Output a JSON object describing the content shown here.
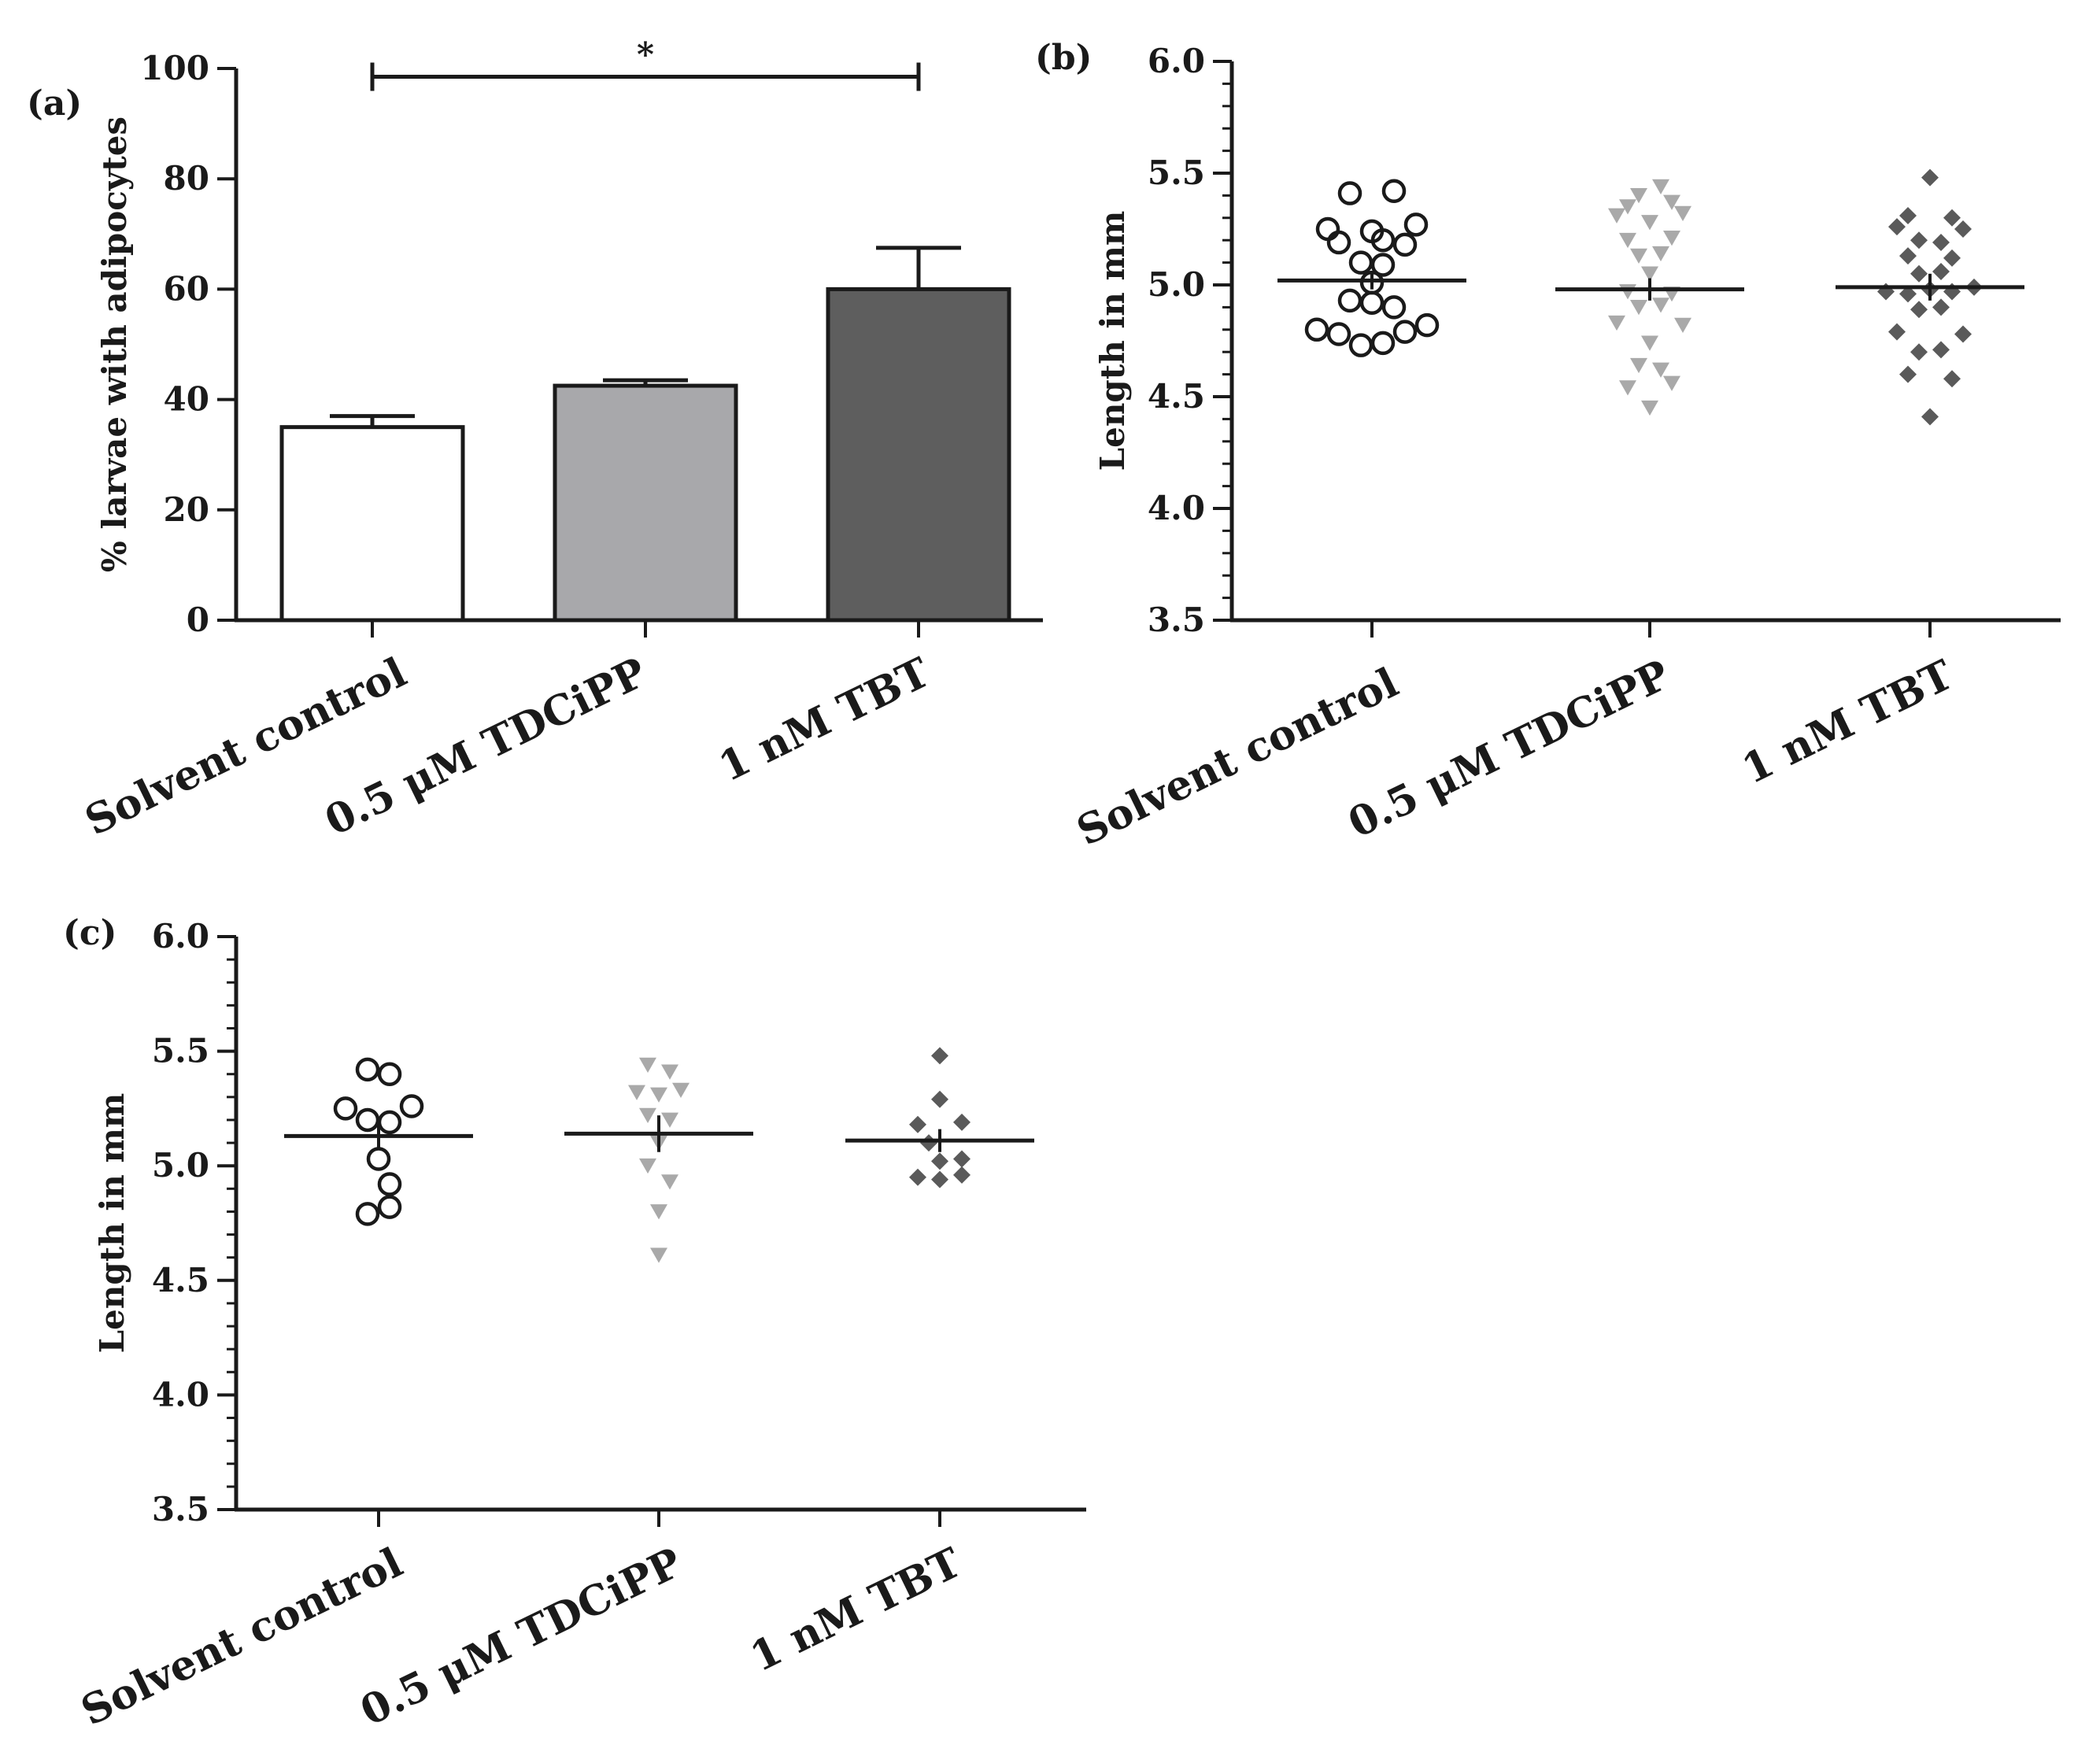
{
  "chart_data": [
    {
      "id": "a",
      "panel_label": "(a)",
      "type": "bar",
      "title": "",
      "xlabel": "",
      "ylabel": "% larvae with adipocytes",
      "ylim": [
        0,
        100
      ],
      "yticks": [
        "0",
        "20",
        "40",
        "60",
        "80",
        "100"
      ],
      "categories": [
        "Solvent control",
        "0.5 μM TDCiPP",
        "1 nM TBT"
      ],
      "values": [
        35,
        42.5,
        60
      ],
      "errors": [
        2,
        1,
        7.5
      ],
      "colors": [
        "#ffffff",
        "#a8a8ab",
        "#5e5e5e"
      ],
      "significance": {
        "label": "*",
        "from": 0,
        "to": 2
      }
    },
    {
      "id": "b",
      "panel_label": "(b)",
      "type": "scatter",
      "title": "",
      "xlabel": "",
      "ylabel": "Length in mm",
      "ylim": [
        3.5,
        6.0
      ],
      "yticks": [
        "3.5",
        "4.0",
        "4.5",
        "5.0",
        "5.5",
        "6.0"
      ],
      "categories": [
        "Solvent control",
        "0.5 μM TDCiPP",
        "1 nM TBT"
      ],
      "series": [
        {
          "name": "Solvent control",
          "marker": "open-circle",
          "color": "#1a1a1a",
          "mean": 5.02,
          "sem": 0.04,
          "points": [
            [
              -2,
              5.41
            ],
            [
              2,
              5.42
            ],
            [
              -4,
              5.25
            ],
            [
              4,
              5.27
            ],
            [
              0,
              5.24
            ],
            [
              -3,
              5.19
            ],
            [
              1,
              5.2
            ],
            [
              3,
              5.18
            ],
            [
              -1,
              5.1
            ],
            [
              1,
              5.09
            ],
            [
              -2,
              4.93
            ],
            [
              0,
              4.92
            ],
            [
              2,
              4.9
            ],
            [
              -5,
              4.8
            ],
            [
              5,
              4.82
            ],
            [
              -3,
              4.78
            ],
            [
              3,
              4.79
            ],
            [
              -1,
              4.73
            ],
            [
              1,
              4.74
            ],
            [
              0,
              5.01
            ]
          ]
        },
        {
          "name": "0.5 μM TDCiPP",
          "marker": "triangle-down",
          "color": "#a9a9a9",
          "mean": 4.98,
          "sem": 0.05,
          "points": [
            [
              -1,
              5.4
            ],
            [
              1,
              5.44
            ],
            [
              -2,
              5.35
            ],
            [
              2,
              5.37
            ],
            [
              -3,
              5.31
            ],
            [
              0,
              5.28
            ],
            [
              3,
              5.32
            ],
            [
              -2,
              5.2
            ],
            [
              2,
              5.21
            ],
            [
              -1,
              5.13
            ],
            [
              1,
              5.14
            ],
            [
              0,
              5.05
            ],
            [
              -2,
              4.97
            ],
            [
              2,
              4.96
            ],
            [
              -1,
              4.9
            ],
            [
              1,
              4.91
            ],
            [
              -3,
              4.83
            ],
            [
              3,
              4.82
            ],
            [
              0,
              4.74
            ],
            [
              -1,
              4.64
            ],
            [
              1,
              4.62
            ],
            [
              -2,
              4.54
            ],
            [
              2,
              4.56
            ],
            [
              0,
              4.45
            ]
          ]
        },
        {
          "name": "1 nM TBT",
          "marker": "diamond",
          "color": "#5a5a5a",
          "mean": 4.99,
          "sem": 0.06,
          "points": [
            [
              0,
              5.48
            ],
            [
              -2,
              5.31
            ],
            [
              2,
              5.3
            ],
            [
              -3,
              5.26
            ],
            [
              3,
              5.25
            ],
            [
              -1,
              5.2
            ],
            [
              1,
              5.19
            ],
            [
              -2,
              5.13
            ],
            [
              2,
              5.12
            ],
            [
              -1,
              5.05
            ],
            [
              1,
              5.06
            ],
            [
              -4,
              4.97
            ],
            [
              -2,
              4.96
            ],
            [
              0,
              4.98
            ],
            [
              2,
              4.97
            ],
            [
              4,
              4.99
            ],
            [
              -1,
              4.89
            ],
            [
              1,
              4.9
            ],
            [
              -3,
              4.79
            ],
            [
              3,
              4.78
            ],
            [
              -1,
              4.7
            ],
            [
              1,
              4.71
            ],
            [
              -2,
              4.6
            ],
            [
              2,
              4.58
            ],
            [
              0,
              4.41
            ]
          ]
        }
      ]
    },
    {
      "id": "c",
      "panel_label": "(c)",
      "type": "scatter",
      "title": "",
      "xlabel": "",
      "ylabel": "Length in mm",
      "ylim": [
        3.5,
        6.0
      ],
      "yticks": [
        "3.5",
        "4.0",
        "4.5",
        "5.0",
        "5.5",
        "6.0"
      ],
      "categories": [
        "Solvent control",
        "0.5 μM TDCiPP",
        "1 nM TBT"
      ],
      "series": [
        {
          "name": "Solvent control",
          "marker": "open-circle",
          "color": "#1a1a1a",
          "mean": 5.13,
          "sem": 0.06,
          "points": [
            [
              -1,
              5.42
            ],
            [
              1,
              5.4
            ],
            [
              -3,
              5.25
            ],
            [
              3,
              5.26
            ],
            [
              -1,
              5.2
            ],
            [
              1,
              5.19
            ],
            [
              0,
              5.03
            ],
            [
              1,
              4.92
            ],
            [
              -1,
              4.79
            ],
            [
              1,
              4.82
            ]
          ]
        },
        {
          "name": "0.5 μM TDCiPP",
          "marker": "triangle-down",
          "color": "#a9a9a9",
          "mean": 5.14,
          "sem": 0.08,
          "points": [
            [
              -1,
              5.44
            ],
            [
              1,
              5.41
            ],
            [
              -2,
              5.32
            ],
            [
              0,
              5.31
            ],
            [
              2,
              5.33
            ],
            [
              -1,
              5.22
            ],
            [
              1,
              5.2
            ],
            [
              0,
              5.1
            ],
            [
              -1,
              5.0
            ],
            [
              1,
              4.93
            ],
            [
              0,
              4.8
            ],
            [
              0,
              4.61
            ]
          ]
        },
        {
          "name": "1 nM TBT",
          "marker": "diamond",
          "color": "#5a5a5a",
          "mean": 5.11,
          "sem": 0.05,
          "points": [
            [
              0,
              5.48
            ],
            [
              0,
              5.29
            ],
            [
              -2,
              5.18
            ],
            [
              2,
              5.19
            ],
            [
              -1,
              5.1
            ],
            [
              0,
              5.02
            ],
            [
              2,
              5.03
            ],
            [
              -2,
              4.95
            ],
            [
              0,
              4.94
            ],
            [
              2,
              4.96
            ]
          ]
        }
      ]
    }
  ]
}
